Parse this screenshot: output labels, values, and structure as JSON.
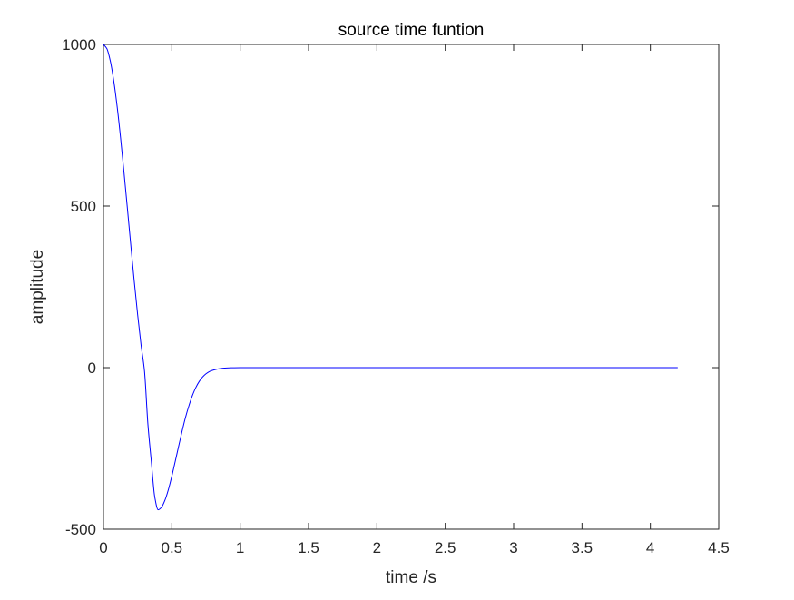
{
  "chart_data": {
    "type": "line",
    "title": "source time funtion",
    "xlabel": "time /s",
    "ylabel": "amplitude",
    "xlim": [
      0,
      4.5
    ],
    "ylim": [
      -500,
      1000
    ],
    "xticks": [
      0,
      0.5,
      1,
      1.5,
      2,
      2.5,
      3,
      3.5,
      4,
      4.5
    ],
    "xtick_labels": [
      "0",
      "0.5",
      "1",
      "1.5",
      "2",
      "2.5",
      "3",
      "3.5",
      "4",
      "4.5"
    ],
    "yticks": [
      -500,
      0,
      500,
      1000
    ],
    "ytick_labels": [
      "-500",
      "0",
      "500",
      "1000"
    ],
    "grid": false,
    "series": [
      {
        "color": "#0000ff",
        "x": [
          0,
          0.025,
          0.05,
          0.075,
          0.1,
          0.125,
          0.15,
          0.175,
          0.2,
          0.225,
          0.25,
          0.275,
          0.3,
          0.325,
          0.35,
          0.375,
          0.4,
          0.425,
          0.45,
          0.475,
          0.5,
          0.525,
          0.55,
          0.575,
          0.6,
          0.625,
          0.65,
          0.675,
          0.7,
          0.725,
          0.75,
          0.775,
          0.8,
          0.85,
          0.9,
          0.95,
          1,
          1.1,
          1.2,
          1.5,
          2,
          2.5,
          3,
          3.5,
          4,
          4.2
        ],
        "y": [
          1000,
          987,
          949,
          888,
          808,
          712,
          605,
          493,
          379,
          268,
          164,
          70,
          -10,
          -175,
          -290,
          -400,
          -440,
          -432,
          -410,
          -377,
          -336,
          -290,
          -243,
          -197,
          -154,
          -118,
          -87,
          -62,
          -43,
          -29,
          -19,
          -12,
          -8,
          -3,
          -1,
          -0.3,
          0,
          0,
          0,
          0,
          0,
          0,
          0,
          0,
          0,
          0
        ]
      }
    ]
  }
}
